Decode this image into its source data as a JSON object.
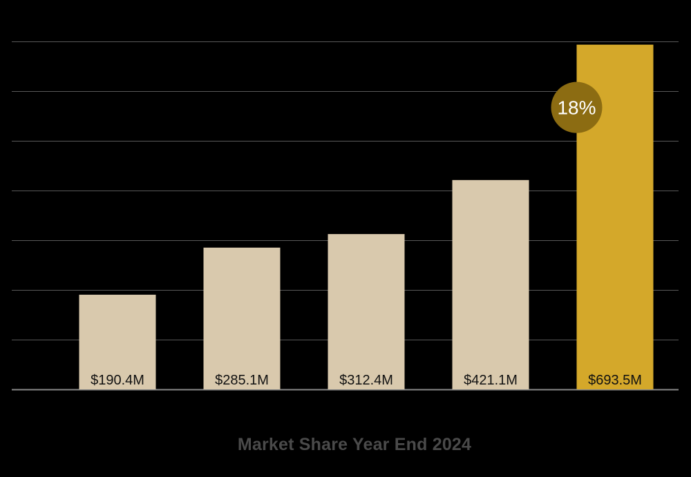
{
  "chart_data": {
    "type": "bar",
    "title": "Market Share Year End 2024",
    "xlabel": "",
    "ylabel": "",
    "categories": [
      "",
      "",
      "",
      "",
      ""
    ],
    "values": [
      190.4,
      285.1,
      312.4,
      421.1,
      693.5
    ],
    "value_labels": [
      "$190.4M",
      "$285.1M",
      "$312.4M",
      "$421.1M",
      "$693.5M"
    ],
    "ylim": [
      0,
      700
    ],
    "gridlines": [
      0,
      100,
      200,
      300,
      400,
      500,
      600,
      700
    ],
    "grid": true,
    "highlight_index": 4,
    "annotation": {
      "text": "18%",
      "bar_index": 4
    },
    "colors": {
      "background": "#000000",
      "bar": "#d9c9ad",
      "highlight_bar": "#d4a82a",
      "annotation_circle": "#8c6c12",
      "annotation_text": "#ffffff",
      "value_label_text": "#111111",
      "gridline": "#5a5a5a",
      "baseline": "#8a8a8a",
      "title_text": "#4a4a4a"
    }
  }
}
